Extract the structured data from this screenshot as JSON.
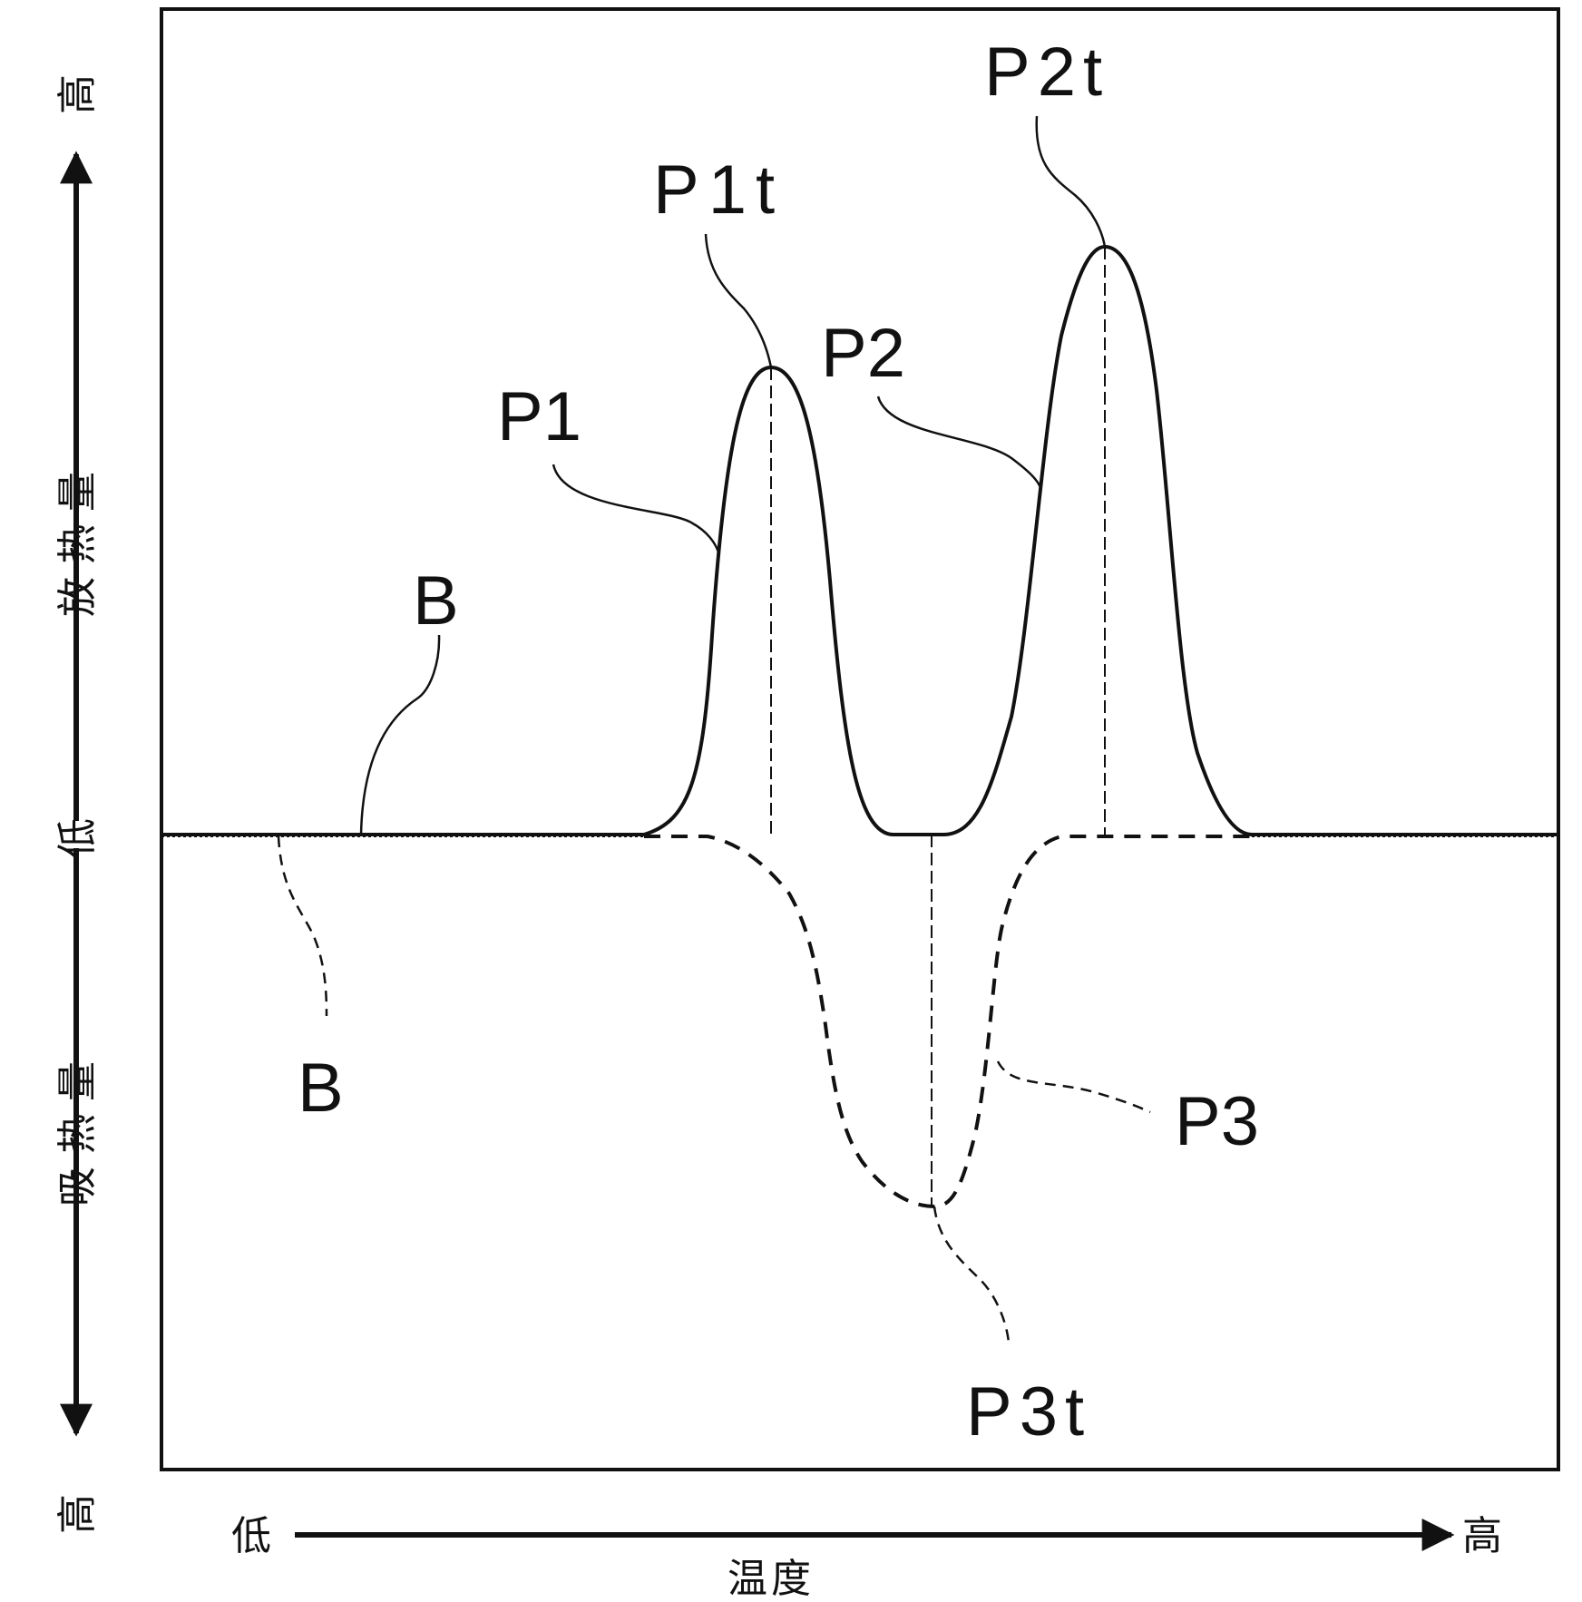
{
  "chart_data": {
    "type": "line",
    "title": "",
    "xlabel": "温度",
    "x_low_label": "低",
    "x_high_label": "高",
    "y_upper_label": "放热量",
    "y_lower_label": "吸热量",
    "y_center_label": "低",
    "y_top_label": "高",
    "y_bottom_label": "高",
    "grid": false,
    "series": [
      {
        "style": "solid",
        "baseline_label": "B",
        "peaks": [
          {
            "label": "P1",
            "peak_label": "P1t"
          },
          {
            "label": "P2",
            "peak_label": "P2t"
          }
        ]
      },
      {
        "style": "dashed",
        "baseline_label": "B",
        "peaks": [
          {
            "label": "P3",
            "peak_label": "P3t"
          }
        ]
      }
    ]
  }
}
